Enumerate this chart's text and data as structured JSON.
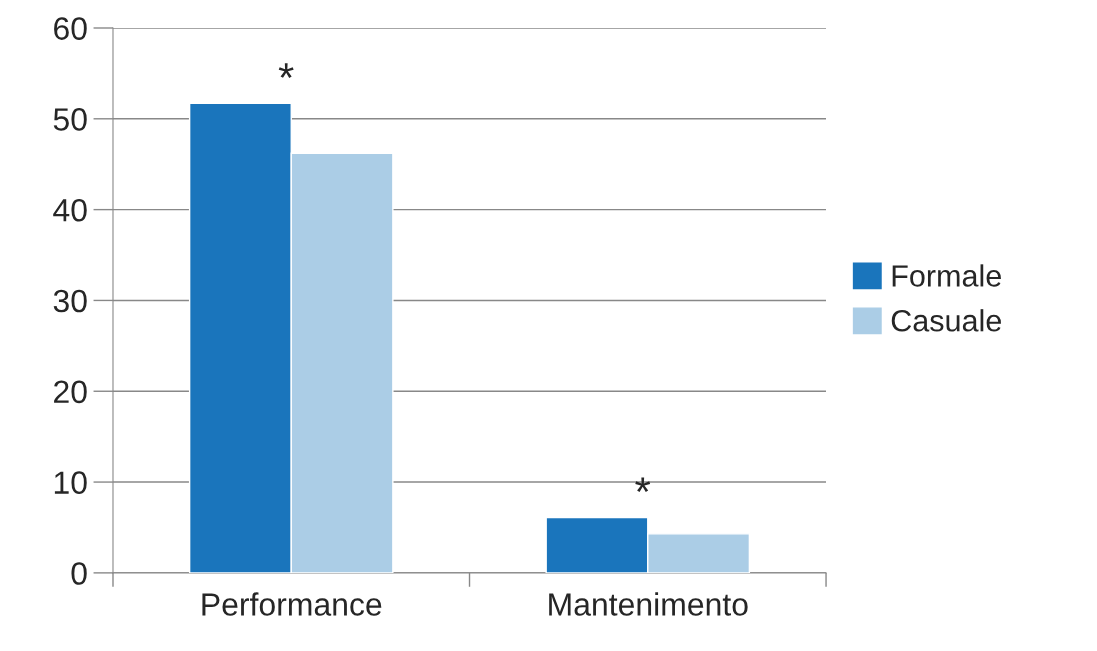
{
  "chart_data": {
    "type": "bar",
    "categories": [
      "Performance",
      "Mantenimento"
    ],
    "series": [
      {
        "name": "Formale",
        "color": "#1a75bc",
        "values": [
          51.7,
          6.1
        ]
      },
      {
        "name": "Casuale",
        "color": "#abcde6",
        "values": [
          46.2,
          4.3
        ]
      }
    ],
    "ylim": [
      0,
      60
    ],
    "yticks": [
      0,
      10,
      20,
      30,
      40,
      50,
      60
    ],
    "grid": "y",
    "legend": "right",
    "annotations": [
      {
        "text": "*",
        "x": "Performance",
        "y": 51.7
      },
      {
        "text": "*",
        "x": "Mantenimento",
        "y": 6.1
      }
    ]
  }
}
